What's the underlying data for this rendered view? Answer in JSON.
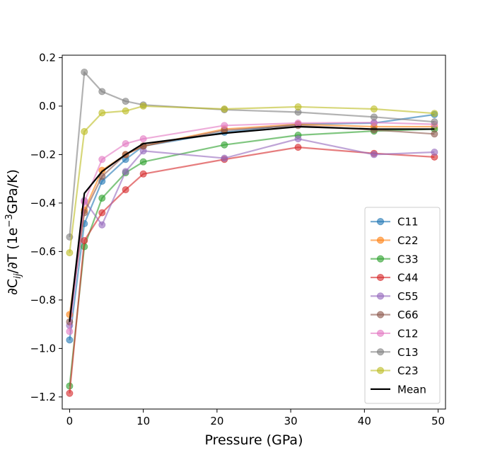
{
  "chart_data": {
    "type": "line",
    "xlabel": "Pressure (GPa)",
    "ylabel_parts": [
      "∂C",
      "ij",
      "/∂T (1e",
      "−3",
      "GPa/K)"
    ],
    "xlim": [
      -1,
      51
    ],
    "ylim": [
      -1.25,
      0.21
    ],
    "x_ticks": [
      0,
      10,
      20,
      30,
      40,
      50
    ],
    "y_ticks": [
      0.2,
      0.0,
      -0.2,
      -0.4,
      -0.6,
      -0.8,
      -1.0,
      -1.2
    ],
    "x_tick_labels": [
      "0",
      "10",
      "20",
      "30",
      "40",
      "50"
    ],
    "y_tick_labels": [
      "0.2",
      "0.0",
      "−0.2",
      "−0.4",
      "−0.6",
      "−0.8",
      "−1.0",
      "−1.2"
    ],
    "legend_position": "lower-right",
    "x": [
      0,
      2,
      4.4,
      7.6,
      10,
      21,
      31,
      41.3,
      49.5
    ],
    "series": [
      {
        "name": "C11",
        "color": "#1f77b4",
        "values": [
          -0.965,
          -0.485,
          -0.31,
          -0.22,
          -0.165,
          -0.108,
          -0.075,
          -0.07,
          -0.035
        ]
      },
      {
        "name": "C22",
        "color": "#ff7f0e",
        "values": [
          -0.86,
          -0.43,
          -0.265,
          -0.2,
          -0.165,
          -0.095,
          -0.075,
          -0.085,
          -0.085
        ]
      },
      {
        "name": "C33",
        "color": "#2ca02c",
        "values": [
          -1.155,
          -0.58,
          -0.38,
          -0.275,
          -0.23,
          -0.16,
          -0.12,
          -0.103,
          -0.095
        ]
      },
      {
        "name": "C44",
        "color": "#d62728",
        "values": [
          -1.185,
          -0.555,
          -0.44,
          -0.345,
          -0.28,
          -0.22,
          -0.17,
          -0.195,
          -0.21
        ]
      },
      {
        "name": "C55",
        "color": "#9467bd",
        "values": [
          -0.905,
          -0.39,
          -0.49,
          -0.27,
          -0.185,
          -0.215,
          -0.135,
          -0.2,
          -0.19
        ]
      },
      {
        "name": "C66",
        "color": "#8c564b",
        "values": [
          -0.89,
          -0.44,
          -0.29,
          -0.2,
          -0.165,
          -0.1,
          -0.08,
          -0.098,
          -0.115
        ]
      },
      {
        "name": "C12",
        "color": "#e377c2",
        "values": [
          -0.93,
          -0.395,
          -0.22,
          -0.155,
          -0.135,
          -0.08,
          -0.07,
          -0.068,
          -0.075
        ]
      },
      {
        "name": "C13",
        "color": "#7f7f7f",
        "values": [
          -0.54,
          0.14,
          0.06,
          0.02,
          0.005,
          -0.015,
          -0.025,
          -0.045,
          -0.065
        ]
      },
      {
        "name": "C23",
        "color": "#bcbd22",
        "values": [
          -0.605,
          -0.105,
          -0.028,
          -0.02,
          0.0,
          -0.012,
          -0.003,
          -0.012,
          -0.03
        ]
      },
      {
        "name": "Mean",
        "color": "#000000",
        "values": [
          -0.89,
          -0.36,
          -0.27,
          -0.2,
          -0.155,
          -0.112,
          -0.085,
          -0.095,
          -0.095
        ]
      }
    ]
  }
}
